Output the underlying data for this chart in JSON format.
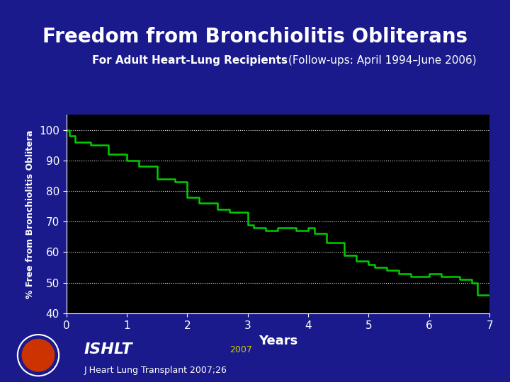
{
  "title": "Freedom from Bronchiolitis Obliterans",
  "subtitle_normal": "For Adult Heart-Lung Recipients ",
  "subtitle_bold": "(Follow-ups: April 1994–June 2006)",
  "xlabel": "Years",
  "ylabel": "% Free from Bronchiolitis Oblitera",
  "xlim": [
    0,
    7
  ],
  "ylim": [
    40,
    105
  ],
  "yticks": [
    40,
    50,
    60,
    70,
    80,
    90,
    100
  ],
  "xticks": [
    0,
    1,
    2,
    3,
    4,
    5,
    6,
    7
  ],
  "grid_color": "#ffffff",
  "line_color": "#00cc00",
  "bg_color": "#000000",
  "outer_bg": "#1a1a8c",
  "title_color": "#ffffff",
  "subtitle_color": "#ffffff",
  "axis_label_color": "#ffffff",
  "tick_label_color": "#ffffff",
  "ishlt_text": "ISHLT",
  "year_text": "2007",
  "journal_text": "J Heart Lung Transplant 2007;26",
  "curve_x": [
    0.0,
    0.05,
    0.05,
    0.15,
    0.15,
    0.4,
    0.4,
    0.7,
    0.7,
    1.0,
    1.0,
    1.2,
    1.2,
    1.5,
    1.5,
    1.8,
    1.8,
    2.0,
    2.0,
    2.2,
    2.2,
    2.5,
    2.5,
    2.7,
    2.7,
    3.0,
    3.0,
    3.1,
    3.1,
    3.3,
    3.3,
    3.5,
    3.5,
    3.8,
    3.8,
    4.0,
    4.0,
    4.1,
    4.1,
    4.3,
    4.3,
    4.6,
    4.6,
    4.8,
    4.8,
    5.0,
    5.0,
    5.1,
    5.1,
    5.3,
    5.3,
    5.5,
    5.5,
    5.7,
    5.7,
    6.0,
    6.0,
    6.2,
    6.2,
    6.5,
    6.5,
    6.7,
    6.7,
    6.8,
    6.8,
    7.0
  ],
  "curve_y": [
    100,
    100,
    98,
    98,
    96,
    96,
    95,
    95,
    92,
    92,
    90,
    90,
    88,
    88,
    84,
    84,
    83,
    83,
    78,
    78,
    76,
    76,
    74,
    74,
    73,
    73,
    69,
    69,
    68,
    68,
    67,
    67,
    68,
    68,
    67,
    67,
    68,
    68,
    66,
    66,
    63,
    63,
    59,
    59,
    57,
    57,
    56,
    56,
    55,
    55,
    54,
    54,
    53,
    53,
    52,
    52,
    53,
    53,
    52,
    52,
    51,
    51,
    50,
    50,
    46,
    46
  ]
}
